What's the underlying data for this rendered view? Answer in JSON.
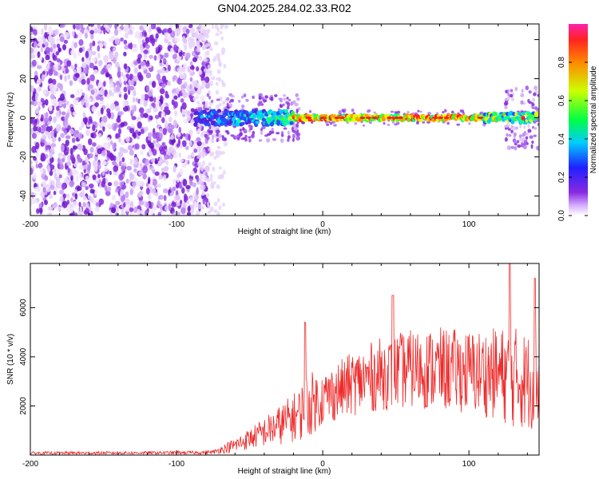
{
  "title": "GN04.2025.284.02.33.R02",
  "colors": {
    "spec_pale": "#e6d2fa",
    "spec_violet": "#8a2be2",
    "snr_line": "#ee2a2a"
  },
  "colorbar": {
    "label": "Normalized spectral amplitude",
    "range": [
      0.0,
      1.0
    ],
    "ticks": [
      "0.0",
      "0.2",
      "0.4",
      "0.6",
      "0.8"
    ]
  },
  "chart_data": [
    {
      "type": "heatmap",
      "name": "spectrogram",
      "xlabel": "Height of straight line (km)",
      "ylabel": "Frequency (Hz)",
      "xlim": [
        -200,
        148
      ],
      "ylim": [
        -50,
        48
      ],
      "xticks": [
        -200,
        -100,
        0,
        100
      ],
      "yticks": [
        -40,
        -20,
        0,
        20,
        40
      ],
      "regions": [
        {
          "label": "noise",
          "x": [
            -200,
            -78
          ],
          "freq": [
            -50,
            48
          ],
          "amplitude": 0.15
        },
        {
          "label": "onset",
          "x": [
            -88,
            -20
          ],
          "freq": [
            -6,
            6
          ],
          "amplitude": 0.4
        },
        {
          "label": "signal",
          "x": [
            -20,
            148
          ],
          "freq": [
            -2,
            2
          ],
          "amplitude": 0.95
        }
      ]
    },
    {
      "type": "line",
      "name": "snr",
      "xlabel": "Height of straight line (km)",
      "ylabel": "SNR (10 * v/v)",
      "xlim": [
        -200,
        148
      ],
      "ylim": [
        0,
        7800
      ],
      "xticks": [
        -200,
        -100,
        0,
        100
      ],
      "yticks": [
        2000,
        4000,
        6000
      ],
      "envelope": {
        "x": [
          -200,
          -120,
          -85,
          -75,
          -60,
          -45,
          -30,
          -15,
          -12,
          0,
          20,
          40,
          60,
          80,
          100,
          120,
          130,
          140,
          148
        ],
        "mean": [
          80,
          90,
          100,
          120,
          400,
          800,
          1200,
          1700,
          2000,
          2300,
          2900,
          3300,
          3500,
          3500,
          3400,
          3300,
          3200,
          3000,
          3000
        ],
        "spread": [
          60,
          60,
          70,
          80,
          300,
          500,
          800,
          1100,
          1400,
          1100,
          1300,
          1500,
          1600,
          1700,
          1700,
          1900,
          2100,
          2000,
          1900
        ],
        "peaks": [
          [
            -12,
            5400
          ],
          [
            48,
            6500
          ],
          [
            128,
            7800
          ],
          [
            145,
            7200
          ]
        ]
      }
    }
  ]
}
